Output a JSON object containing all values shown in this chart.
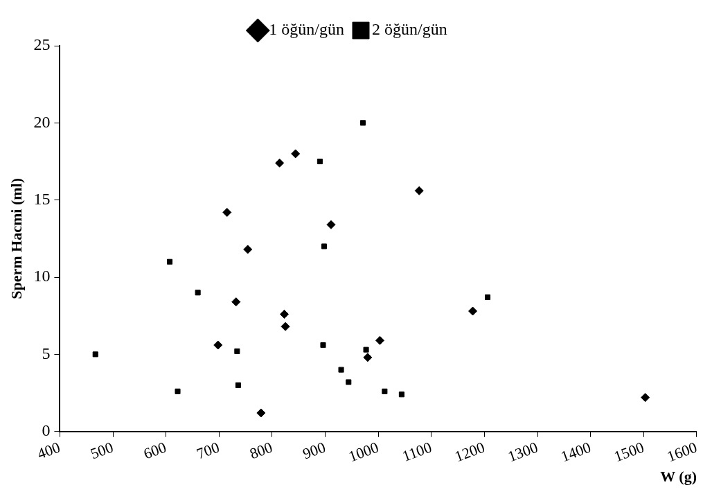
{
  "chart_data": {
    "type": "scatter",
    "xlabel": "W (g)",
    "ylabel": "Sperm Hacmi (ml)",
    "xlim": [
      400,
      1600
    ],
    "xticks": [
      400,
      500,
      600,
      700,
      800,
      900,
      1000,
      1100,
      1200,
      1300,
      1400,
      1500,
      1600
    ],
    "ylim": [
      0,
      25
    ],
    "yticks": [
      0,
      5,
      10,
      15,
      20,
      25
    ],
    "grid": false,
    "legend": "top",
    "series": [
      {
        "name": "1 öğün/gün",
        "color": "#000000",
        "marker": "diamond",
        "x": [
          844,
          814,
          715,
          911,
          754,
          732,
          823,
          825,
          698,
          779,
          1077,
          1178,
          1003,
          980,
          1503
        ],
        "values": [
          18.0,
          17.4,
          14.2,
          13.4,
          11.8,
          8.4,
          7.6,
          6.8,
          5.6,
          1.2,
          15.6,
          7.8,
          5.9,
          4.8,
          2.2
        ]
      },
      {
        "name": "2 öğün/gün",
        "color": "#000000",
        "marker": "square",
        "x": [
          467,
          607,
          660,
          622,
          734,
          736,
          890,
          898,
          896,
          971,
          930,
          944,
          977,
          1012,
          1044,
          1206
        ],
        "values": [
          5.0,
          11.0,
          9.0,
          2.6,
          5.2,
          3.0,
          17.5,
          12.0,
          5.6,
          20.0,
          4.0,
          3.2,
          5.3,
          2.6,
          2.4,
          8.7
        ]
      }
    ]
  }
}
